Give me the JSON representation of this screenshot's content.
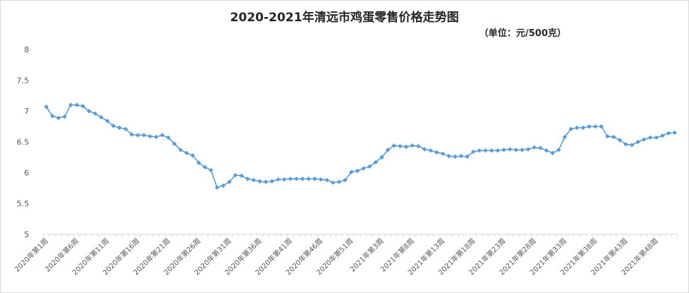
{
  "chart_data": {
    "type": "line",
    "title": "2020-2021年清远市鸡蛋零售价格走势图",
    "subtitle": "（单位：元/500克）",
    "xlabel": "",
    "ylabel": "",
    "ylim": [
      5,
      8
    ],
    "yticks": [
      "5",
      "5.5",
      "6",
      "6.5",
      "7",
      "7.5",
      "8"
    ],
    "grid": false,
    "legend": "none",
    "colors": {
      "line": "#5b9bd5",
      "marker": "#5b9bd5",
      "axis": "#d9d9d9",
      "text": "#595959"
    },
    "x_tick_labels": [
      "2020年第1周",
      "2020年第6周",
      "2020年第11周",
      "2020年第16周",
      "2020年第21周",
      "2020年第26周",
      "2020年第31周",
      "2020年第36周",
      "2020年第41周",
      "2020年第46周",
      "2020年第51周",
      "2021年第3周",
      "2021年第8周",
      "2021年第13周",
      "2021年第18周",
      "2021年第23周",
      "2021年第28周",
      "2021年第33周",
      "2021年第38周",
      "2021年第43周",
      "2021年第48周"
    ],
    "series": [
      {
        "values": [
          7.07,
          6.92,
          6.89,
          6.91,
          7.1,
          7.1,
          7.08,
          7.0,
          6.96,
          6.9,
          6.84,
          6.76,
          6.73,
          6.71,
          6.62,
          6.61,
          6.61,
          6.59,
          6.58,
          6.61,
          6.57,
          6.47,
          6.37,
          6.32,
          6.28,
          6.16,
          6.09,
          6.04,
          5.76,
          5.79,
          5.85,
          5.96,
          5.95,
          5.9,
          5.88,
          5.86,
          5.85,
          5.86,
          5.89,
          5.89,
          5.9,
          5.9,
          5.9,
          5.9,
          5.9,
          5.89,
          5.88,
          5.84,
          5.85,
          5.88,
          6.01,
          6.03,
          6.07,
          6.1,
          6.17,
          6.25,
          6.37,
          6.44,
          6.43,
          6.42,
          6.44,
          6.43,
          6.38,
          6.36,
          6.33,
          6.31,
          6.27,
          6.26,
          6.27,
          6.26,
          6.34,
          6.36,
          6.36,
          6.36,
          6.36,
          6.37,
          6.38,
          6.37,
          6.37,
          6.38,
          6.41,
          6.4,
          6.36,
          6.32,
          6.37,
          6.58,
          6.71,
          6.73,
          6.73,
          6.75,
          6.75,
          6.75,
          6.59,
          6.58,
          6.53,
          6.46,
          6.45,
          6.5,
          6.54,
          6.57,
          6.57,
          6.6,
          6.64,
          6.65
        ]
      }
    ]
  }
}
